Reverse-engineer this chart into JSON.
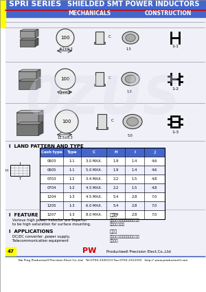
{
  "title_left": "SPRI SERIES",
  "title_right": "SHIELDED SMT POWER INDUCTORS",
  "subtitle_left": "MECHANICALS",
  "subtitle_right": "CONSTRUCTION",
  "header_bg": "#4466CC",
  "header_red_line": "#CC0000",
  "yellow_bar": "#FFFF00",
  "bg_color": "#FFFFFF",
  "table_header": [
    "Cash type",
    "Type",
    "C",
    "H",
    "I",
    "J"
  ],
  "table_rows": [
    [
      "0603",
      "1-1",
      "3.0 MAX.",
      "1.9",
      "1.4",
      "4.6"
    ],
    [
      "0605",
      "1-1",
      "5.0 MAX.",
      "1.9",
      "1.4",
      "4.6"
    ],
    [
      "0703",
      "1-2",
      "3.4 MAX.",
      "2.2",
      "1.5",
      "4.8"
    ],
    [
      "0704",
      "1-2",
      "4.5 MAX.",
      "2.2",
      "1.5",
      "4.8"
    ],
    [
      "1204",
      "1-3",
      "4.5 MAX.",
      "5.4",
      "2.8",
      "7.0"
    ],
    [
      "1205",
      "1-3",
      "6.0 MAX.",
      "5.4",
      "2.8",
      "7.0"
    ],
    [
      "1207",
      "1-3",
      "8.0 MAX.",
      "5.4",
      "2.8",
      "7.0"
    ]
  ],
  "table_header_bg": "#4466CC",
  "table_row_bg": "#FFFFFF",
  "watermark": "0ZUS",
  "watermark_color": "#DDDDEE",
  "page_num": "47",
  "footer_company": "Productwell Precision Elect.Co.,Ltd",
  "footer_contact": "Kai Ping Productwell Precision Elect.Co.,Ltd   Tel:0750-2320113 Fax:0750-2312333   http:// www.productwell.com",
  "feature_title": "FEATURE",
  "feature_text": "Various high power inductor are Superior\nto be high saturation for surface mounting.",
  "app_title": "APPLICATIONS",
  "app_text": "DC/DC converter ,power supply,\nTelecommunication equipment",
  "cn_feature": "特点：\n具有高功率、高饱和电流、低损\n耗、小型化结构",
  "cn_app": "应用：\n直流交换机、电池充电器、小型\n運行设备"
}
